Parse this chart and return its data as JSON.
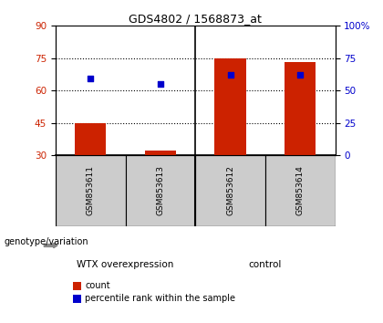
{
  "title": "GDS4802 / 1568873_at",
  "samples": [
    "GSM853611",
    "GSM853613",
    "GSM853612",
    "GSM853614"
  ],
  "counts": [
    45,
    32,
    75,
    73
  ],
  "percentiles": [
    59,
    55,
    62,
    62
  ],
  "ylim_left": [
    30,
    90
  ],
  "ylim_right": [
    0,
    100
  ],
  "yticks_left": [
    30,
    45,
    60,
    75,
    90
  ],
  "yticks_right": [
    0,
    25,
    50,
    75,
    100
  ],
  "ytick_labels_right": [
    "0",
    "25",
    "50",
    "75",
    "100%"
  ],
  "bar_color": "#cc2200",
  "dot_color": "#0000cc",
  "groups": [
    {
      "label": "WTX overexpression",
      "color": "#88dd88"
    },
    {
      "label": "control",
      "color": "#44cc44"
    }
  ],
  "group_label": "genotype/variation",
  "legend_count": "count",
  "legend_pct": "percentile rank within the sample",
  "label_bg": "#cccccc",
  "grid_yticks": [
    45,
    60,
    75
  ],
  "bar_width": 0.45
}
